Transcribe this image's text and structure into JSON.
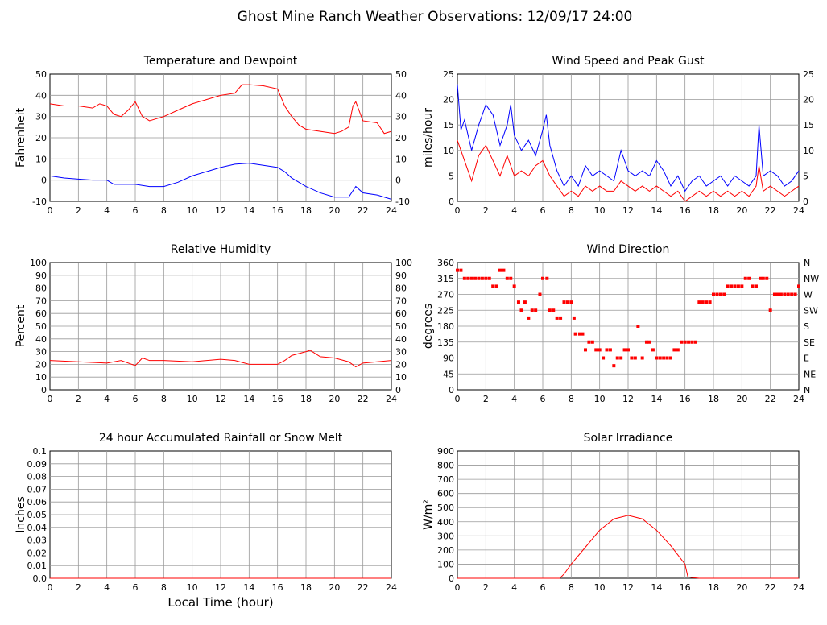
{
  "title": "Ghost Mine Ranch Weather Observations: 12/09/17 24:00",
  "chart_data": [
    {
      "id": "temp",
      "type": "line",
      "title": "Temperature and Dewpoint",
      "ylabel": "Fahrenheit",
      "xlabel": "",
      "ylim": [
        -10,
        50
      ],
      "yticks": [
        -10,
        0,
        10,
        20,
        30,
        40,
        50
      ],
      "right_ticks": true,
      "xlim": [
        0,
        24
      ],
      "series": [
        {
          "name": "Temperature",
          "color": "#ff0000",
          "x": [
            0,
            1,
            2,
            3,
            3.5,
            4,
            4.5,
            5,
            5.5,
            6,
            6.5,
            7,
            7.5,
            8,
            9,
            10,
            11,
            12,
            13,
            13.5,
            14,
            15,
            16,
            16.5,
            17,
            17.5,
            18,
            19,
            20,
            20.5,
            21,
            21.3,
            21.5,
            22,
            23,
            23.5,
            24
          ],
          "y": [
            36,
            35,
            35,
            34,
            36,
            35,
            31,
            30,
            33,
            37,
            30,
            28,
            29,
            30,
            33,
            36,
            38,
            40,
            41,
            45,
            45,
            44.5,
            43,
            35,
            30,
            26,
            24,
            23,
            22,
            23,
            25,
            35,
            37,
            28,
            27,
            22,
            23
          ]
        },
        {
          "name": "Dewpoint",
          "color": "#0000ff",
          "x": [
            0,
            1,
            2,
            3,
            4,
            4.5,
            5,
            6,
            7,
            8,
            9,
            10,
            11,
            12,
            13,
            14,
            15,
            16,
            16.5,
            17,
            18,
            19,
            20,
            21,
            21.5,
            22,
            23,
            24
          ],
          "y": [
            2,
            1,
            0.5,
            0,
            0,
            -2,
            -2,
            -2,
            -3,
            -3,
            -1,
            2,
            4,
            6,
            7.5,
            8,
            7,
            6,
            4,
            1,
            -3,
            -6,
            -8,
            -8,
            -3,
            -6,
            -7,
            -9
          ]
        }
      ]
    },
    {
      "id": "wind",
      "type": "line",
      "title": "Wind Speed and Peak Gust",
      "ylabel": "miles/hour",
      "xlabel": "",
      "ylim": [
        0,
        25
      ],
      "yticks": [
        0,
        5,
        10,
        15,
        20,
        25
      ],
      "right_ticks": true,
      "xlim": [
        0,
        24
      ],
      "series": [
        {
          "name": "Peak Gust",
          "color": "#0000ff",
          "x": [
            0,
            0.25,
            0.5,
            1,
            1.5,
            2,
            2.5,
            3,
            3.5,
            3.75,
            4,
            4.5,
            5,
            5.5,
            6,
            6.25,
            6.5,
            7,
            7.5,
            8,
            8.5,
            9,
            9.5,
            10,
            10.5,
            11,
            11.5,
            12,
            12.5,
            13,
            13.5,
            14,
            14.5,
            15,
            15.5,
            16,
            16.5,
            17,
            17.5,
            18,
            18.5,
            19,
            19.5,
            20,
            20.5,
            21,
            21.2,
            21.5,
            22,
            22.5,
            23,
            23.5,
            24
          ],
          "y": [
            23,
            14,
            16,
            10,
            15,
            19,
            17,
            11,
            15,
            19,
            13,
            10,
            12,
            9,
            14,
            17,
            11,
            6,
            3,
            5,
            3,
            7,
            5,
            6,
            5,
            4,
            10,
            6,
            5,
            6,
            5,
            8,
            6,
            3,
            5,
            2,
            4,
            5,
            3,
            4,
            5,
            3,
            5,
            4,
            3,
            5,
            15,
            5,
            6,
            5,
            3,
            4,
            6
          ]
        },
        {
          "name": "Wind Speed",
          "color": "#ff0000",
          "x": [
            0,
            0.5,
            1,
            1.5,
            2,
            2.5,
            3,
            3.5,
            4,
            4.5,
            5,
            5.5,
            6,
            6.5,
            7,
            7.5,
            8,
            8.5,
            9,
            9.5,
            10,
            10.5,
            11,
            11.5,
            12,
            12.5,
            13,
            13.5,
            14,
            14.5,
            15,
            15.5,
            16,
            16.5,
            17,
            17.5,
            18,
            18.5,
            19,
            19.5,
            20,
            20.5,
            21,
            21.2,
            21.5,
            22,
            22.5,
            23,
            23.5,
            24
          ],
          "y": [
            12,
            8,
            4,
            9,
            11,
            8,
            5,
            9,
            5,
            6,
            5,
            7,
            8,
            5,
            3,
            1,
            2,
            1,
            3,
            2,
            3,
            2,
            2,
            4,
            3,
            2,
            3,
            2,
            3,
            2,
            1,
            2,
            0,
            1,
            2,
            1,
            2,
            1,
            2,
            1,
            2,
            1,
            3,
            7,
            2,
            3,
            2,
            1,
            2,
            3
          ]
        }
      ]
    },
    {
      "id": "rh",
      "type": "line",
      "title": "Relative Humidity",
      "ylabel": "Percent",
      "xlabel": "",
      "ylim": [
        0,
        100
      ],
      "yticks": [
        0,
        10,
        20,
        30,
        40,
        50,
        60,
        70,
        80,
        90,
        100
      ],
      "right_ticks": true,
      "xlim": [
        0,
        24
      ],
      "series": [
        {
          "name": "Relative Humidity",
          "color": "#ff0000",
          "x": [
            0,
            2,
            4,
            5,
            6,
            6.5,
            7,
            8,
            10,
            12,
            13,
            14,
            16,
            16.5,
            17,
            18,
            18.3,
            19,
            20,
            21,
            21.5,
            22,
            23,
            24
          ],
          "y": [
            23,
            22,
            21,
            23,
            19,
            25,
            23,
            23,
            22,
            24,
            23,
            20,
            20,
            23,
            27,
            30,
            31,
            26,
            25,
            22,
            18,
            21,
            22,
            23
          ]
        }
      ]
    },
    {
      "id": "dir",
      "type": "scatter",
      "title": "Wind Direction",
      "ylabel": "degrees",
      "xlabel": "",
      "ylim": [
        0,
        360
      ],
      "yticks": [
        0,
        45,
        90,
        135,
        180,
        225,
        270,
        315,
        360
      ],
      "right_labels": [
        "N",
        "NE",
        "E",
        "SE",
        "S",
        "SW",
        "W",
        "NW",
        "N"
      ],
      "xlim": [
        0,
        24
      ],
      "series": [
        {
          "name": "Wind Direction",
          "color": "#ff0000",
          "x": [
            0,
            0.25,
            0.5,
            0.75,
            1,
            1.25,
            1.5,
            1.75,
            2,
            2.25,
            2.5,
            2.75,
            3,
            3.25,
            3.5,
            3.75,
            4,
            4.3,
            4.5,
            4.75,
            5,
            5.25,
            5.5,
            5.8,
            6,
            6.3,
            6.5,
            6.75,
            7,
            7.25,
            7.5,
            7.75,
            8,
            8.2,
            8.3,
            8.6,
            8.8,
            9,
            9.25,
            9.5,
            9.75,
            10,
            10.25,
            10.5,
            10.75,
            11,
            11.25,
            11.5,
            11.75,
            12,
            12.25,
            12.5,
            12.7,
            13,
            13.3,
            13.5,
            13.75,
            14,
            14.25,
            14.5,
            14.75,
            15,
            15.25,
            15.5,
            15.75,
            16,
            16.25,
            16.5,
            16.75,
            17,
            17.25,
            17.5,
            17.75,
            18,
            18.25,
            18.5,
            18.75,
            19,
            19.25,
            19.5,
            19.75,
            20,
            20.25,
            20.5,
            20.75,
            21,
            21.3,
            21.5,
            21.75,
            22,
            22.3,
            22.5,
            22.75,
            23,
            23.25,
            23.5,
            23.75,
            24
          ],
          "y": [
            338,
            338,
            315,
            315,
            315,
            315,
            315,
            315,
            315,
            315,
            293,
            293,
            338,
            338,
            315,
            315,
            293,
            248,
            225,
            248,
            203,
            225,
            225,
            270,
            315,
            315,
            225,
            225,
            203,
            203,
            248,
            248,
            248,
            203,
            158,
            158,
            158,
            113,
            135,
            135,
            113,
            113,
            90,
            113,
            113,
            68,
            90,
            90,
            113,
            113,
            90,
            90,
            180,
            90,
            135,
            135,
            113,
            90,
            90,
            90,
            90,
            90,
            113,
            113,
            135,
            135,
            135,
            135,
            135,
            248,
            248,
            248,
            248,
            270,
            270,
            270,
            270,
            293,
            293,
            293,
            293,
            293,
            315,
            315,
            293,
            293,
            315,
            315,
            315,
            225,
            270,
            270,
            270,
            270,
            270,
            270,
            270,
            293
          ]
        }
      ]
    },
    {
      "id": "rain",
      "type": "line",
      "title": "24 hour Accumulated Rainfall or Snow Melt",
      "ylabel": "Inches",
      "xlabel": "Local Time (hour)",
      "ylim": [
        0,
        0.1
      ],
      "yticks": [
        "0.0",
        "0.01",
        "0.02",
        "0.03",
        "0.04",
        "0.05",
        "0.06",
        "0.07",
        "0.08",
        "0.09",
        "0.1"
      ],
      "right_ticks": false,
      "xlim": [
        0,
        24
      ],
      "series": [
        {
          "name": "Rainfall",
          "color": "#ff0000",
          "x": [
            0,
            24
          ],
          "y": [
            0,
            0
          ]
        }
      ]
    },
    {
      "id": "solar",
      "type": "line",
      "title": "Solar Irradiance",
      "ylabel": "W/m²",
      "xlabel": "",
      "ylim": [
        0,
        900
      ],
      "yticks": [
        0,
        100,
        200,
        300,
        400,
        500,
        600,
        700,
        800,
        900
      ],
      "right_ticks": false,
      "xlim": [
        0,
        24
      ],
      "series": [
        {
          "name": "Solar Irradiance",
          "color": "#ff0000",
          "x": [
            0,
            7.2,
            7.5,
            8,
            9,
            10,
            11,
            12,
            13,
            14,
            15,
            16,
            16.2,
            16.5,
            17,
            24
          ],
          "y": [
            0,
            0,
            30,
            100,
            220,
            340,
            420,
            445,
            420,
            340,
            230,
            100,
            10,
            5,
            0,
            0
          ]
        }
      ]
    }
  ],
  "xticks": [
    0,
    2,
    4,
    6,
    8,
    10,
    12,
    14,
    16,
    18,
    20,
    22,
    24
  ]
}
